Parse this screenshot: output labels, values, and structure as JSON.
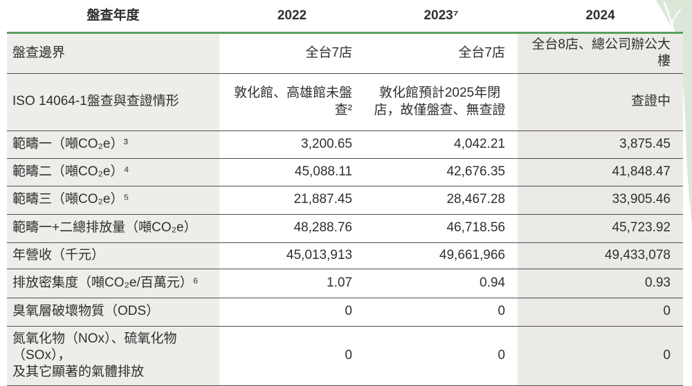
{
  "table": {
    "header": {
      "label": "盤查年度",
      "years": [
        "2022",
        "2023⁷",
        "2024"
      ]
    },
    "rows": [
      {
        "label": "盤查邊界",
        "values": [
          "全台7店",
          "全台7店",
          "全台8店、總公司辦公大樓"
        ]
      },
      {
        "label": "ISO 14064-1盤查與查證情形",
        "values": [
          "敦化館、高雄館未盤查²",
          "敦化館預計2025年閉\n店，故僅盤查、無查證",
          "查證中"
        ]
      },
      {
        "label": "範疇一（噸CO₂e）³",
        "values": [
          "3,200.65",
          "4,042.21",
          "3,875.45"
        ]
      },
      {
        "label": "範疇二（噸CO₂e）⁴",
        "values": [
          "45,088.11",
          "42,676.35",
          "41,848.47"
        ]
      },
      {
        "label": "範疇三（噸CO₂e）⁵",
        "values": [
          "21,887.45",
          "28,467.28",
          "33,905.46"
        ]
      },
      {
        "label": "範疇一+二總排放量（噸CO₂e）",
        "values": [
          "48,288.76",
          "46,718.56",
          "45,723.92"
        ]
      },
      {
        "label": "年營收（千元）",
        "values": [
          "45,013,913",
          "49,661,966",
          "49,433,078"
        ]
      },
      {
        "label": "排放密集度（噸CO₂e/百萬元）⁶",
        "values": [
          "1.07",
          "0.94",
          "0.93"
        ]
      },
      {
        "label": "臭氧層破壞物質（ODS）",
        "values": [
          "0",
          "0",
          "0"
        ]
      },
      {
        "label": "氮氧化物（NOx）、硫氧化物（SOx），\n及其它顯著的氣體排放",
        "values": [
          "0",
          "0",
          "0"
        ]
      }
    ],
    "colors": {
      "accent_green": "#5a9e5d",
      "label_column_bg": "#eeedea",
      "col_2024_bg": "#eceae7",
      "divider_line": "#4b4b4b",
      "text": "#2f2f2f",
      "leaf_decoration": "#dce8d7"
    }
  }
}
